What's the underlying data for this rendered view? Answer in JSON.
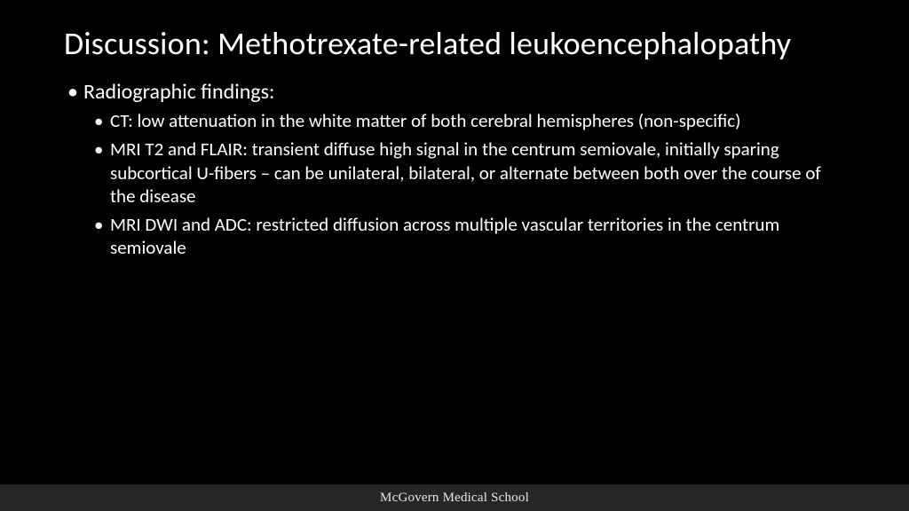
{
  "slide": {
    "title": "Discussion: Methotrexate-related leukoencephalopathy",
    "bullets": {
      "l1_0": "Radiographic findings:",
      "l2_0": "CT: low attenuation in the white matter of both cerebral hemispheres (non-specific)",
      "l2_1": "MRI T2 and FLAIR: transient diffuse high signal in the centrum semiovale, initially sparing subcortical U-fibers – can be unilateral, bilateral, or alternate between both over the course of the disease",
      "l2_2": "MRI DWI and ADC: restricted diffusion across multiple vascular territories in the centrum semiovale"
    }
  },
  "footer": {
    "text": "McGovern Medical School"
  },
  "style": {
    "background": "#000000",
    "text_color": "#ffffff",
    "footer_bg": "#262626",
    "title_fontsize": 36,
    "l1_fontsize": 24,
    "l2_fontsize": 21
  }
}
